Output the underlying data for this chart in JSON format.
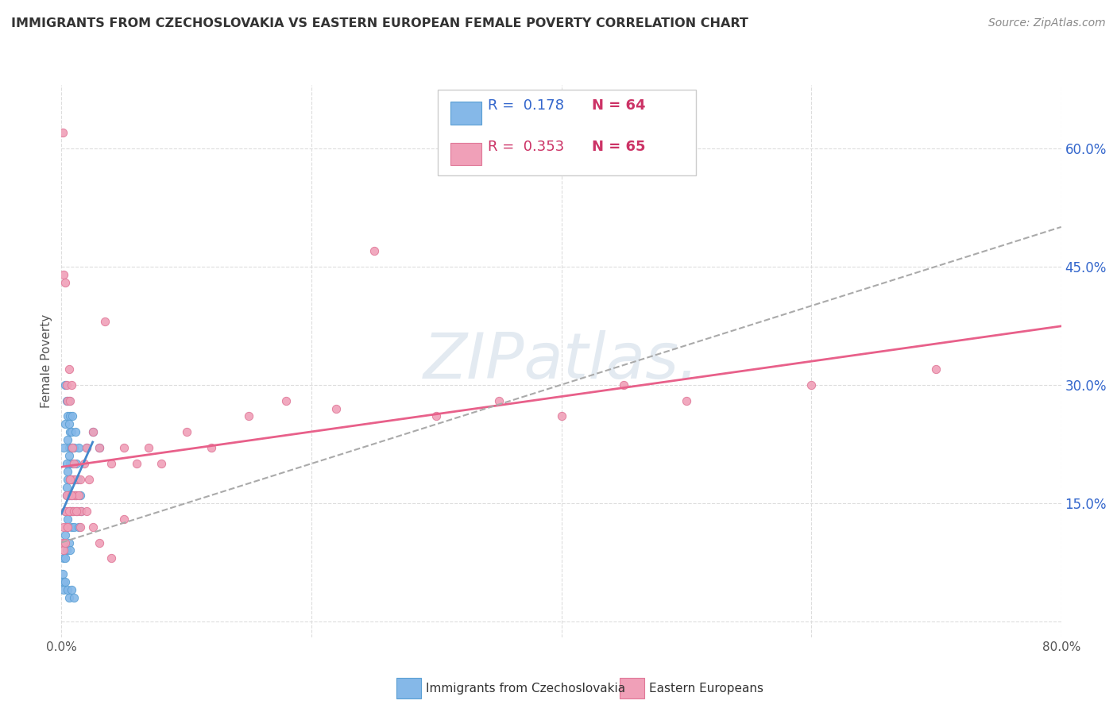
{
  "title": "IMMIGRANTS FROM CZECHOSLOVAKIA VS EASTERN EUROPEAN FEMALE POVERTY CORRELATION CHART",
  "source": "Source: ZipAtlas.com",
  "ylabel": "Female Poverty",
  "xlim": [
    0.0,
    0.8
  ],
  "ylim": [
    -0.02,
    0.68
  ],
  "xticks": [
    0.0,
    0.2,
    0.4,
    0.6,
    0.8
  ],
  "xtick_labels": [
    "0.0%",
    "",
    "",
    "",
    "80.0%"
  ],
  "yticks": [
    0.0,
    0.15,
    0.3,
    0.45,
    0.6
  ],
  "ytick_labels_right": [
    "",
    "15.0%",
    "30.0%",
    "45.0%",
    "60.0%"
  ],
  "background_color": "#ffffff",
  "grid_color": "#dddddd",
  "blue_color": "#85b8e8",
  "blue_edge": "#5a9fd4",
  "blue_line": "#4488cc",
  "pink_color": "#f0a0b8",
  "pink_edge": "#e07898",
  "pink_line": "#e8608a",
  "dash_color": "#aaaaaa",
  "watermark_text": "ZIPatlas.",
  "legend_R1": "R =  0.178",
  "legend_N1": "N = 64",
  "legend_R2": "R =  0.353",
  "legend_N2": "N = 65",
  "legend_label1": "Immigrants from Czechoslovakia",
  "legend_label2": "Eastern Europeans",
  "blue_scatter_x": [
    0.002,
    0.002,
    0.003,
    0.003,
    0.003,
    0.004,
    0.004,
    0.004,
    0.005,
    0.005,
    0.006,
    0.006,
    0.006,
    0.007,
    0.007,
    0.007,
    0.008,
    0.008,
    0.009,
    0.009,
    0.01,
    0.01,
    0.011,
    0.012,
    0.013,
    0.014,
    0.015,
    0.016,
    0.002,
    0.003,
    0.004,
    0.004,
    0.005,
    0.005,
    0.006,
    0.006,
    0.007,
    0.007,
    0.008,
    0.008,
    0.009,
    0.003,
    0.004,
    0.005,
    0.006,
    0.007,
    0.008,
    0.009,
    0.01,
    0.011,
    0.012,
    0.014,
    0.02,
    0.025,
    0.03,
    0.001,
    0.001,
    0.002,
    0.002,
    0.003,
    0.005,
    0.006,
    0.008,
    0.01
  ],
  "blue_scatter_y": [
    0.1,
    0.08,
    0.14,
    0.11,
    0.08,
    0.16,
    0.12,
    0.09,
    0.18,
    0.13,
    0.22,
    0.16,
    0.1,
    0.2,
    0.14,
    0.09,
    0.18,
    0.12,
    0.2,
    0.14,
    0.18,
    0.12,
    0.16,
    0.14,
    0.18,
    0.12,
    0.16,
    0.14,
    0.22,
    0.25,
    0.2,
    0.17,
    0.23,
    0.19,
    0.25,
    0.21,
    0.24,
    0.18,
    0.22,
    0.16,
    0.22,
    0.3,
    0.28,
    0.26,
    0.28,
    0.26,
    0.24,
    0.26,
    0.22,
    0.24,
    0.2,
    0.22,
    0.22,
    0.24,
    0.22,
    0.05,
    0.06,
    0.05,
    0.04,
    0.05,
    0.04,
    0.03,
    0.04,
    0.03
  ],
  "pink_scatter_x": [
    0.001,
    0.001,
    0.002,
    0.002,
    0.003,
    0.003,
    0.004,
    0.004,
    0.005,
    0.005,
    0.006,
    0.006,
    0.007,
    0.007,
    0.008,
    0.008,
    0.009,
    0.009,
    0.01,
    0.01,
    0.011,
    0.012,
    0.013,
    0.014,
    0.015,
    0.016,
    0.018,
    0.02,
    0.022,
    0.025,
    0.03,
    0.035,
    0.04,
    0.05,
    0.06,
    0.07,
    0.08,
    0.1,
    0.12,
    0.15,
    0.18,
    0.22,
    0.25,
    0.3,
    0.35,
    0.4,
    0.45,
    0.5,
    0.6,
    0.7,
    0.002,
    0.003,
    0.004,
    0.005,
    0.006,
    0.007,
    0.008,
    0.01,
    0.012,
    0.015,
    0.02,
    0.025,
    0.03,
    0.04,
    0.05
  ],
  "pink_scatter_y": [
    0.62,
    0.1,
    0.44,
    0.09,
    0.43,
    0.1,
    0.3,
    0.12,
    0.28,
    0.14,
    0.32,
    0.16,
    0.28,
    0.14,
    0.3,
    0.18,
    0.22,
    0.14,
    0.2,
    0.16,
    0.18,
    0.16,
    0.14,
    0.16,
    0.18,
    0.14,
    0.2,
    0.22,
    0.18,
    0.24,
    0.22,
    0.38,
    0.2,
    0.22,
    0.2,
    0.22,
    0.2,
    0.24,
    0.22,
    0.26,
    0.28,
    0.27,
    0.47,
    0.26,
    0.28,
    0.26,
    0.3,
    0.28,
    0.3,
    0.32,
    0.12,
    0.14,
    0.16,
    0.12,
    0.14,
    0.18,
    0.16,
    0.14,
    0.14,
    0.12,
    0.14,
    0.12,
    0.1,
    0.08,
    0.13
  ]
}
